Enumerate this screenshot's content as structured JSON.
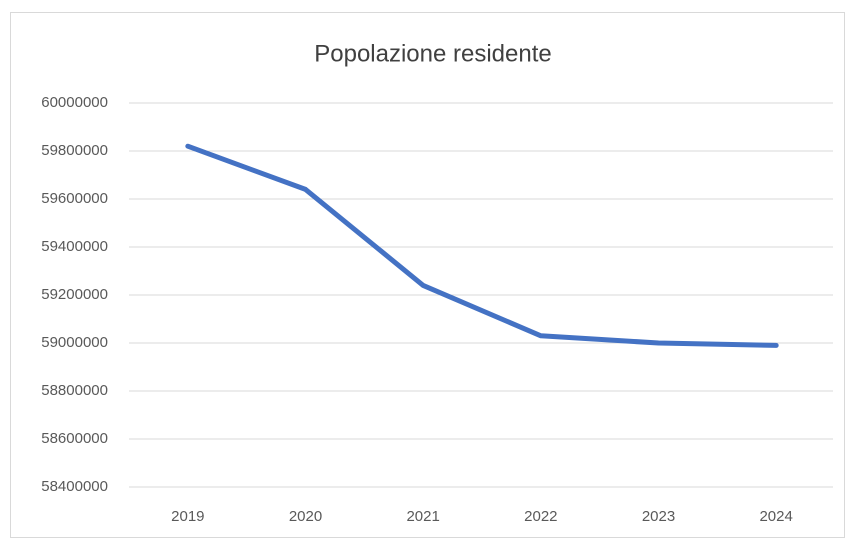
{
  "chart_data": {
    "type": "line",
    "title": "Popolazione residente",
    "categories": [
      "2019",
      "2020",
      "2021",
      "2022",
      "2023",
      "2024"
    ],
    "series": [
      {
        "name": "Popolazione residente",
        "color": "#4472c4",
        "values": [
          59820000,
          59640000,
          59240000,
          59030000,
          59000000,
          58990000
        ]
      }
    ],
    "ylim": [
      58400000,
      60000000
    ],
    "yticks": [
      58400000,
      58600000,
      58800000,
      59000000,
      59200000,
      59400000,
      59600000,
      59800000,
      60000000
    ],
    "grid": true
  }
}
